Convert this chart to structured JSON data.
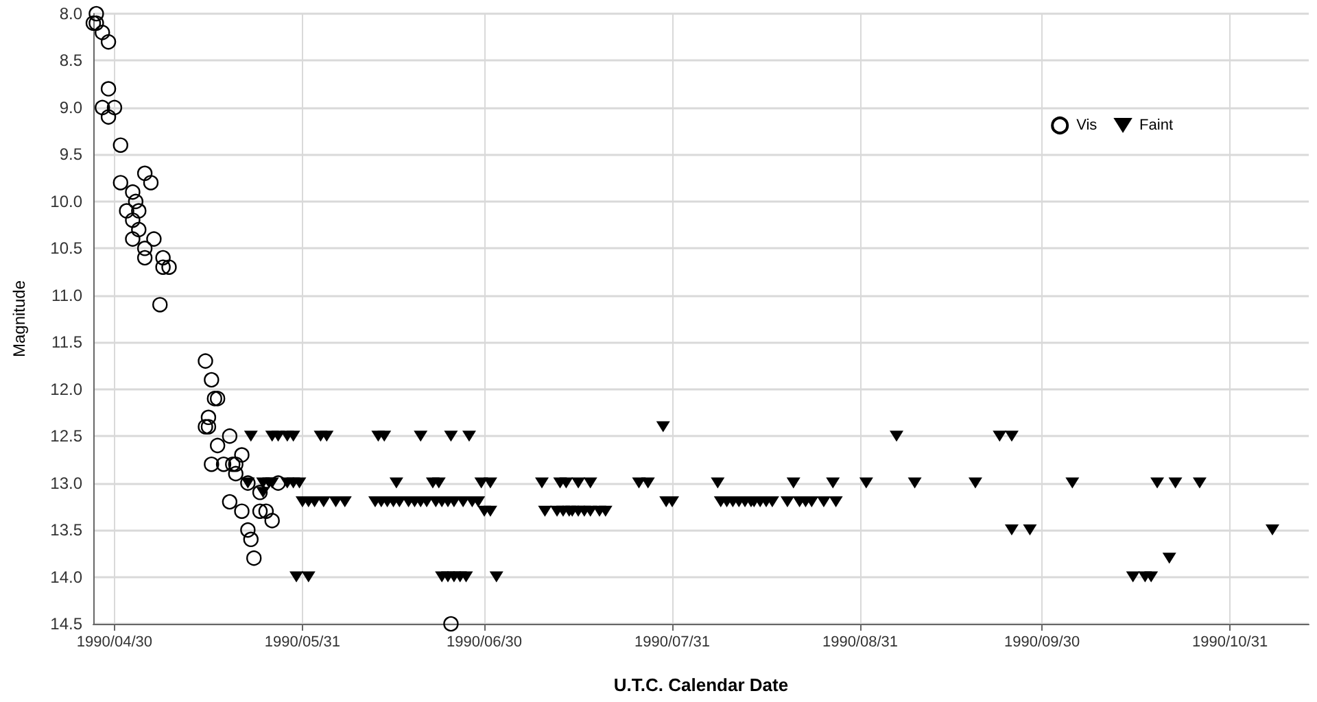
{
  "chart_data": {
    "type": "scatter",
    "xlabel": "U.T.C. Calendar Date",
    "ylabel": "Magnitude",
    "xlim": [
      "1990-04-26T12:00",
      "1990-11-13"
    ],
    "xticks": [
      {
        "value": "1990-04-30",
        "label": "1990/04/30"
      },
      {
        "value": "1990-05-31",
        "label": "1990/05/31"
      },
      {
        "value": "1990-06-30",
        "label": "1990/06/30"
      },
      {
        "value": "1990-07-31",
        "label": "1990/07/31"
      },
      {
        "value": "1990-08-31",
        "label": "1990/08/31"
      },
      {
        "value": "1990-09-30",
        "label": "1990/09/30"
      },
      {
        "value": "1990-10-31",
        "label": "1990/10/31"
      }
    ],
    "ylim": [
      14.5,
      8.0
    ],
    "yticks": [
      {
        "value": 8,
        "label": "8.0"
      },
      {
        "value": 8.5,
        "label": "8.5"
      },
      {
        "value": 9,
        "label": "9.0"
      },
      {
        "value": 9.5,
        "label": "9.5"
      },
      {
        "value": 10,
        "label": "10.0"
      },
      {
        "value": 10.5,
        "label": "10.5"
      },
      {
        "value": 11,
        "label": "11.0"
      },
      {
        "value": 11.5,
        "label": "11.5"
      },
      {
        "value": 12,
        "label": "12.0"
      },
      {
        "value": 12.5,
        "label": "12.5"
      },
      {
        "value": 13,
        "label": "13.0"
      },
      {
        "value": 13.5,
        "label": "13.5"
      },
      {
        "value": 14,
        "label": "14.0"
      },
      {
        "value": 14.5,
        "label": "14.5"
      }
    ],
    "grid": true,
    "legend": "top right",
    "series": [
      {
        "name": "Vis",
        "color": "#000000",
        "marker": "circle",
        "x": [
          "1990-04-27",
          "1990-04-26T12:00",
          "1990-04-27",
          "1990-04-28",
          "1990-04-29",
          "1990-04-29",
          "1990-04-28",
          "1990-04-29",
          "1990-04-30",
          "1990-05-01",
          "1990-05-01",
          "1990-05-03",
          "1990-05-03T12:00",
          "1990-05-02",
          "1990-05-04",
          "1990-05-03",
          "1990-05-04",
          "1990-05-03",
          "1990-05-05",
          "1990-05-05",
          "1990-05-05",
          "1990-05-06",
          "1990-05-06T12:00",
          "1990-05-08",
          "1990-05-08",
          "1990-05-09",
          "1990-05-07T12:00",
          "1990-05-15",
          "1990-05-16",
          "1990-05-16T12:00",
          "1990-05-17",
          "1990-05-15T12:00",
          "1990-05-15",
          "1990-05-15T12:00",
          "1990-05-17",
          "1990-05-16",
          "1990-05-19",
          "1990-05-18",
          "1990-05-19T12:00",
          "1990-05-20",
          "1990-05-21",
          "1990-05-20",
          "1990-05-22",
          "1990-05-19",
          "1990-05-21",
          "1990-05-22",
          "1990-05-22T12:00",
          "1990-05-23",
          "1990-05-24",
          "1990-05-24",
          "1990-05-25",
          "1990-05-26",
          "1990-05-27",
          "1990-06-24T12:00"
        ],
        "values": [
          8.0,
          8.1,
          8.1,
          8.2,
          8.3,
          8.8,
          9.0,
          9.1,
          9.0,
          9.4,
          9.8,
          9.9,
          10.0,
          10.1,
          10.1,
          10.2,
          10.3,
          10.4,
          10.5,
          10.6,
          9.7,
          9.8,
          10.4,
          10.6,
          10.7,
          10.7,
          11.1,
          11.7,
          11.9,
          12.1,
          12.1,
          12.3,
          12.4,
          12.4,
          12.6,
          12.8,
          12.5,
          12.8,
          12.8,
          12.8,
          12.7,
          12.9,
          13.0,
          13.2,
          13.3,
          13.5,
          13.6,
          13.8,
          13.1,
          13.3,
          13.3,
          13.4,
          13.0,
          14.5
        ]
      },
      {
        "name": "Faint",
        "color": "#000000",
        "marker": "triangle",
        "x": [
          "1990-05-22T12:00",
          "1990-05-26",
          "1990-05-27",
          "1990-05-28T12:00",
          "1990-05-29T12:00",
          "1990-06-03",
          "1990-06-04",
          "1990-06-12T12:00",
          "1990-06-13T12:00",
          "1990-06-19T12:00",
          "1990-06-24T12:00",
          "1990-06-27T12:00",
          "1990-05-22",
          "1990-05-24T12:00",
          "1990-05-25T12:00",
          "1990-05-26",
          "1990-05-28T12:00",
          "1990-05-29T12:00",
          "1990-05-30T12:00",
          "1990-06-15T12:00",
          "1990-06-21T12:00",
          "1990-06-22T12:00",
          "1990-06-29T12:00",
          "1990-07-01",
          "1990-07-09T12:00",
          "1990-07-12T12:00",
          "1990-07-13T12:00",
          "1990-07-15T12:00",
          "1990-07-17T12:00",
          "1990-07-25T12:00",
          "1990-07-27",
          "1990-08-07T12:00",
          "1990-08-20",
          "1990-08-26T12:00",
          "1990-09-01",
          "1990-09-09",
          "1990-09-19",
          "1990-10-05",
          "1990-10-19",
          "1990-10-22",
          "1990-10-26",
          "1990-05-24T12:00",
          "1990-05-31",
          "1990-06-01",
          "1990-06-02",
          "1990-06-03T12:00",
          "1990-06-05T12:00",
          "1990-06-07",
          "1990-06-12",
          "1990-06-13",
          "1990-06-14",
          "1990-06-15",
          "1990-06-16",
          "1990-06-17T12:00",
          "1990-06-18T12:00",
          "1990-06-19T12:00",
          "1990-06-20T12:00",
          "1990-06-22",
          "1990-06-23",
          "1990-06-24",
          "1990-06-25",
          "1990-06-26T12:00",
          "1990-06-28",
          "1990-06-29",
          "1990-07-30",
          "1990-07-31",
          "1990-08-08",
          "1990-08-09",
          "1990-08-10",
          "1990-08-11",
          "1990-08-12",
          "1990-08-13",
          "1990-08-13T12:00",
          "1990-08-14T12:00",
          "1990-08-15T12:00",
          "1990-08-16T12:00",
          "1990-08-19",
          "1990-08-21",
          "1990-08-22",
          "1990-08-23",
          "1990-08-25",
          "1990-08-27",
          "1990-06-30",
          "1990-07-01",
          "1990-07-10",
          "1990-07-12",
          "1990-07-13",
          "1990-07-14",
          "1990-07-14T12:00",
          "1990-07-15T12:00",
          "1990-07-16T12:00",
          "1990-07-17T12:00",
          "1990-07-19",
          "1990-07-20",
          "1990-07-29T12:00",
          "1990-09-06",
          "1990-09-23",
          "1990-09-25",
          "1990-09-25",
          "1990-09-28",
          "1990-11-07",
          "1990-10-21",
          "1990-05-30",
          "1990-06-01",
          "1990-06-23",
          "1990-06-24",
          "1990-06-25",
          "1990-06-26",
          "1990-06-27",
          "1990-07-02",
          "1990-10-15",
          "1990-10-17",
          "1990-10-18"
        ],
        "values": [
          12.5,
          12.5,
          12.5,
          12.5,
          12.5,
          12.5,
          12.5,
          12.5,
          12.5,
          12.5,
          12.5,
          12.5,
          13.0,
          13.0,
          13.0,
          13.0,
          13.0,
          13.0,
          13.0,
          13.0,
          13.0,
          13.0,
          13.0,
          13.0,
          13.0,
          13.0,
          13.0,
          13.0,
          13.0,
          13.0,
          13.0,
          13.0,
          13.0,
          13.0,
          13.0,
          13.0,
          13.0,
          13.0,
          13.0,
          13.0,
          13.0,
          13.1,
          13.2,
          13.2,
          13.2,
          13.2,
          13.2,
          13.2,
          13.2,
          13.2,
          13.2,
          13.2,
          13.2,
          13.2,
          13.2,
          13.2,
          13.2,
          13.2,
          13.2,
          13.2,
          13.2,
          13.2,
          13.2,
          13.2,
          13.2,
          13.2,
          13.2,
          13.2,
          13.2,
          13.2,
          13.2,
          13.2,
          13.2,
          13.2,
          13.2,
          13.2,
          13.2,
          13.2,
          13.2,
          13.2,
          13.2,
          13.2,
          13.3,
          13.3,
          13.3,
          13.3,
          13.3,
          13.3,
          13.3,
          13.3,
          13.3,
          13.3,
          13.3,
          13.3,
          12.4,
          12.5,
          12.5,
          12.5,
          13.5,
          13.5,
          13.5,
          13.8,
          14.0,
          14.0,
          14.0,
          14.0,
          14.0,
          14.0,
          14.0,
          14.0,
          14.0,
          14.0,
          14.0
        ]
      }
    ]
  }
}
